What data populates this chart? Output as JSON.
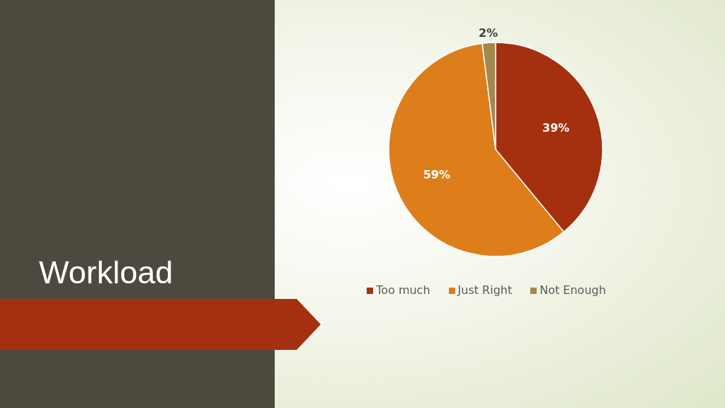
{
  "chart_data": {
    "type": "pie",
    "title": "Workload",
    "categories": [
      "Too much",
      "Just Right",
      "Not Enough"
    ],
    "values": [
      39,
      59,
      2
    ],
    "colors": [
      "#a5300f",
      "#dd7e1b",
      "#a4874f"
    ],
    "value_labels": [
      "39%",
      "59%",
      "2%"
    ],
    "legend": "bottom"
  }
}
